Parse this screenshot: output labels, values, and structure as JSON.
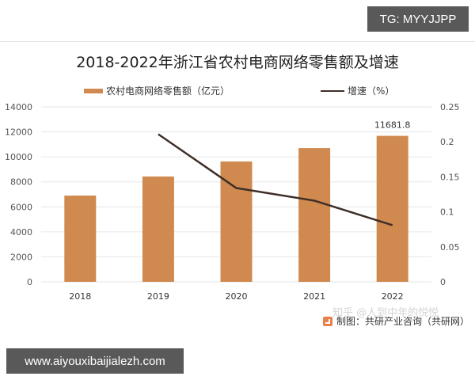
{
  "overlay": {
    "top_badge": "TG: MYYJJPP",
    "bottom_badge": "www.aiyouxibaijialezh.com"
  },
  "chart_data": {
    "type": "bar+line",
    "title": "2018-2022年浙江省农村电商网络零售额及增速",
    "categories": [
      "2018",
      "2019",
      "2020",
      "2021",
      "2022"
    ],
    "series": [
      {
        "name": "农村电商网络零售额（亿元）",
        "type": "bar",
        "axis": "left",
        "color": "#d08a4f",
        "values": [
          6900,
          8430,
          9630,
          10700,
          11681.8
        ],
        "data_labels": [
          null,
          null,
          null,
          null,
          "11681.8"
        ]
      },
      {
        "name": "增速（%）",
        "type": "line",
        "axis": "right",
        "color": "#3e2f27",
        "values": [
          null,
          0.211,
          0.134,
          0.116,
          0.081
        ]
      }
    ],
    "left_axis": {
      "ylim": [
        0,
        14000
      ],
      "ticks": [
        "0",
        "2000",
        "4000",
        "6000",
        "8000",
        "10000",
        "12000",
        "14000"
      ]
    },
    "right_axis": {
      "ylim": [
        0,
        0.25
      ],
      "ticks": [
        "0",
        "0.05",
        "0.1",
        "0.15",
        "0.2",
        "0.25"
      ]
    },
    "grid": true,
    "legend_position": "top",
    "source": "制图：共研产业咨询（共研网）",
    "watermark": "知乎 @人到中年的悦悦"
  }
}
